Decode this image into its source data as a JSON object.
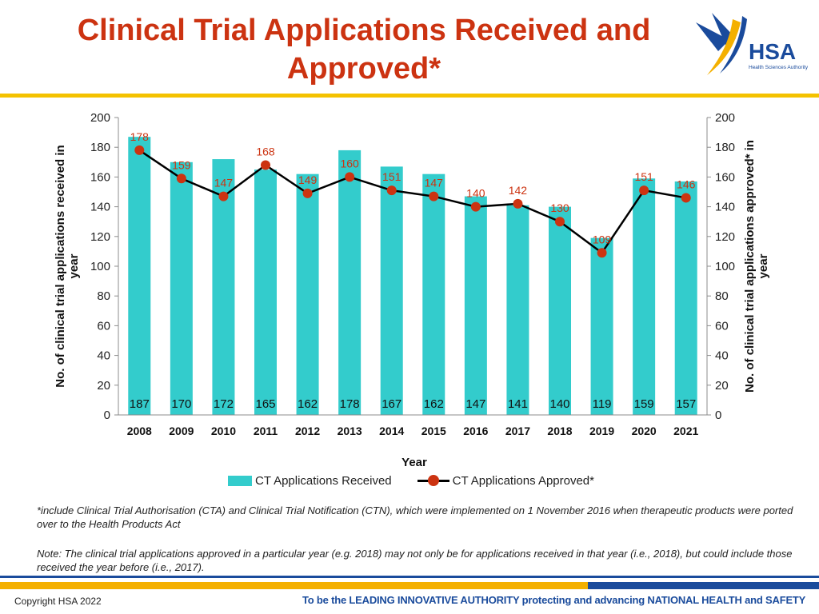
{
  "header": {
    "title_line1": "Clinical Trial Applications Received and",
    "title_line2": "Approved*",
    "logo_text": "HSA",
    "logo_subtext": "Health Sciences Authority"
  },
  "colors": {
    "bar": "#33cccc",
    "line": "#000000",
    "marker": "#cc3311",
    "title": "#cc3311",
    "brand_blue": "#1a4b9c",
    "brand_yellow": "#f4b000"
  },
  "chart_data": {
    "type": "bar",
    "categories": [
      "2008",
      "2009",
      "2010",
      "2011",
      "2012",
      "2013",
      "2014",
      "2015",
      "2016",
      "2017",
      "2018",
      "2019",
      "2020",
      "2021"
    ],
    "series": [
      {
        "name": "CT Applications Received",
        "type": "bar",
        "axis": "left",
        "values": [
          187,
          170,
          172,
          165,
          162,
          178,
          167,
          162,
          147,
          141,
          140,
          119,
          159,
          157
        ]
      },
      {
        "name": "CT Applications Approved*",
        "type": "line",
        "axis": "right",
        "values": [
          178,
          159,
          147,
          168,
          149,
          160,
          151,
          147,
          140,
          142,
          130,
          109,
          151,
          146
        ]
      }
    ],
    "xlabel": "Year",
    "ylabel_left": "No. of clinical trial applications received in year",
    "ylabel_right": "No. of clinical trial applications approved* in year",
    "ylim": [
      0,
      200
    ],
    "yticks": [
      0,
      20,
      40,
      60,
      80,
      100,
      120,
      140,
      160,
      180,
      200
    ],
    "legend_position": "bottom",
    "grid": false
  },
  "footnotes": {
    "asterisk_note": "*include Clinical Trial Authorisation (CTA) and Clinical Trial Notification (CTN), which were implemented on 1 November 2016 when therapeutic products were ported over to the Health Products Act",
    "approval_note": "Note: The clinical trial applications approved in a particular year (e.g. 2018) may not only be for applications received in that year (i.e., 2018), but could include those received the year before (i.e., 2017)."
  },
  "footer": {
    "copyright": "Copyright HSA 2022",
    "tagline": "To be the LEADING INNOVATIVE AUTHORITY protecting and advancing NATIONAL HEALTH and SAFETY"
  }
}
